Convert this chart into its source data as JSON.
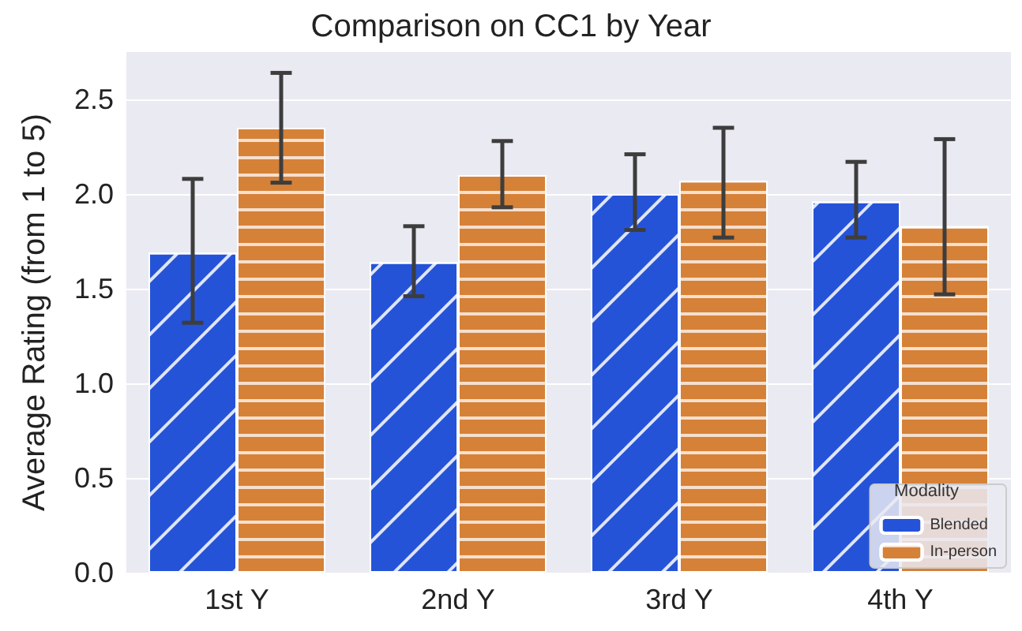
{
  "chart_data": {
    "type": "bar",
    "title": "Comparison on CC1 by Year",
    "ylabel": "Average Rating (from 1 to 5)",
    "legend_title": "Modality",
    "categories": [
      "1st Y",
      "2nd Y",
      "3rd Y",
      "4th Y"
    ],
    "series": [
      {
        "name": "Blended",
        "color": "#2553d8",
        "values": [
          1.69,
          1.64,
          2.0,
          1.96
        ],
        "errors": [
          [
            1.32,
            2.08
          ],
          [
            1.46,
            1.83
          ],
          [
            1.81,
            2.21
          ],
          [
            1.77,
            2.17
          ]
        ]
      },
      {
        "name": "In-person",
        "color": "#d68138",
        "values": [
          2.35,
          2.1,
          2.07,
          1.83
        ],
        "errors": [
          [
            2.06,
            2.64
          ],
          [
            1.93,
            2.28
          ],
          [
            1.77,
            2.35
          ],
          [
            1.47,
            2.29
          ]
        ]
      }
    ],
    "ylim": [
      0,
      2.75
    ],
    "yticks": [
      {
        "value": 0,
        "label": "0.0"
      },
      0.5,
      {
        "value": 1,
        "label": "1.0"
      },
      1.5,
      {
        "value": 2,
        "label": "2.0"
      },
      2.5
    ],
    "grid": "y",
    "legend": "bottom right"
  }
}
